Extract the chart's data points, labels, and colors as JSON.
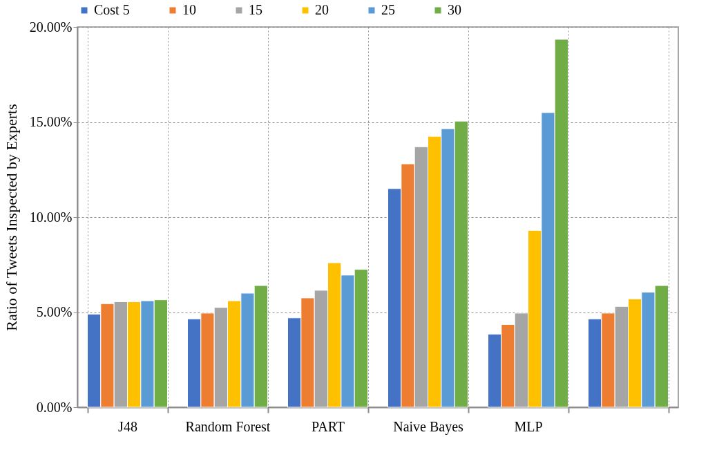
{
  "chart_data": {
    "type": "bar",
    "ylabel": "Ratio of Tweets Inspected by Experts",
    "categories": [
      "J48",
      "Random Forest",
      "PART",
      "Naive Bayes",
      "MLP",
      null
    ],
    "series": [
      {
        "name": "Cost 5",
        "color": "#4472c4",
        "values": [
          4.9,
          4.65,
          4.7,
          11.5,
          3.85,
          4.65
        ]
      },
      {
        "name": "10",
        "color": "#ed7d31",
        "values": [
          5.45,
          4.95,
          5.75,
          12.8,
          4.35,
          4.95
        ]
      },
      {
        "name": "15",
        "color": "#a5a5a5",
        "values": [
          5.55,
          5.25,
          6.15,
          13.7,
          4.95,
          5.3
        ]
      },
      {
        "name": "20",
        "color": "#ffc000",
        "values": [
          5.55,
          5.6,
          7.6,
          14.25,
          9.3,
          5.7
        ]
      },
      {
        "name": "25",
        "color": "#5b9bd5",
        "values": [
          5.6,
          6.0,
          6.95,
          14.65,
          15.5,
          6.05
        ]
      },
      {
        "name": "30",
        "color": "#70ad47",
        "values": [
          5.65,
          6.4,
          7.25,
          15.05,
          19.35,
          6.4
        ]
      }
    ],
    "ylim": [
      0,
      20
    ],
    "yticks": [
      {
        "value": 0,
        "label": "0.00%"
      },
      {
        "value": 5,
        "label": "5.00%"
      },
      {
        "value": 10,
        "label": "10.00%"
      },
      {
        "value": 15,
        "label": "15.00%"
      },
      {
        "value": 20,
        "label": "20.00%"
      }
    ],
    "grid": true,
    "legend": "top"
  }
}
